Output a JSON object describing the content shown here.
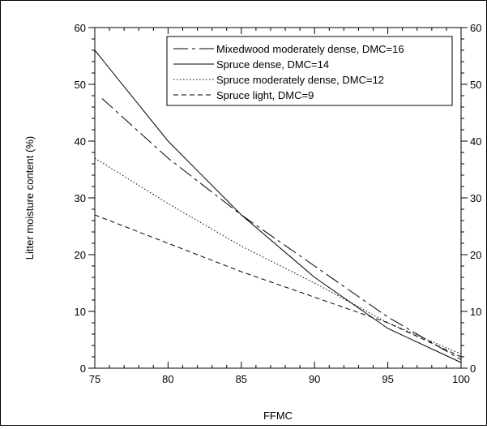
{
  "chart_data": {
    "type": "line",
    "title": "",
    "xlabel": "FFMC",
    "ylabel": "Litter moisture content (%)",
    "xlim": [
      75,
      100
    ],
    "ylim": [
      0,
      60
    ],
    "x_ticks": [
      75,
      80,
      85,
      90,
      95,
      100
    ],
    "x_minor_ticks": [
      76,
      77,
      78,
      79,
      81,
      82,
      83,
      84,
      86,
      87,
      88,
      89,
      91,
      92,
      93,
      94,
      96,
      97,
      98,
      99
    ],
    "y_ticks": [
      0,
      10,
      20,
      30,
      40,
      50,
      60
    ],
    "y_minor_ticks": [
      2,
      4,
      6,
      8,
      12,
      14,
      16,
      18,
      22,
      24,
      26,
      28,
      32,
      34,
      36,
      38,
      42,
      44,
      46,
      48,
      52,
      54,
      56,
      58
    ],
    "x_tick_labels": [
      "75",
      "80",
      "85",
      "90",
      "95",
      "100"
    ],
    "y_tick_labels": [
      "0",
      "10",
      "20",
      "30",
      "40",
      "50",
      "60"
    ],
    "right_y_axis_labels": true,
    "grid": false,
    "legend_position": "top-right",
    "series": [
      {
        "name": "Mixedwood moderately dense, DMC=16",
        "dash": "long-dash",
        "x": [
          75.5,
          80,
          85,
          90,
          95,
          100
        ],
        "y": [
          47.5,
          37,
          27,
          18,
          9,
          1.5
        ]
      },
      {
        "name": "Spruce dense, DMC=14",
        "dash": "solid",
        "x": [
          75,
          80,
          85,
          90,
          95,
          100
        ],
        "y": [
          56,
          40,
          27,
          16,
          7,
          1
        ]
      },
      {
        "name": "Spruce moderately dense, DMC=12",
        "dash": "dotted",
        "x": [
          75,
          80,
          85,
          90,
          95,
          100
        ],
        "y": [
          37,
          29,
          21.5,
          15,
          8,
          2.5
        ]
      },
      {
        "name": "Spruce light, DMC=9",
        "dash": "short-dash",
        "x": [
          75,
          80,
          85,
          90,
          95,
          100
        ],
        "y": [
          27,
          22,
          17,
          12.5,
          8,
          2
        ]
      }
    ]
  }
}
